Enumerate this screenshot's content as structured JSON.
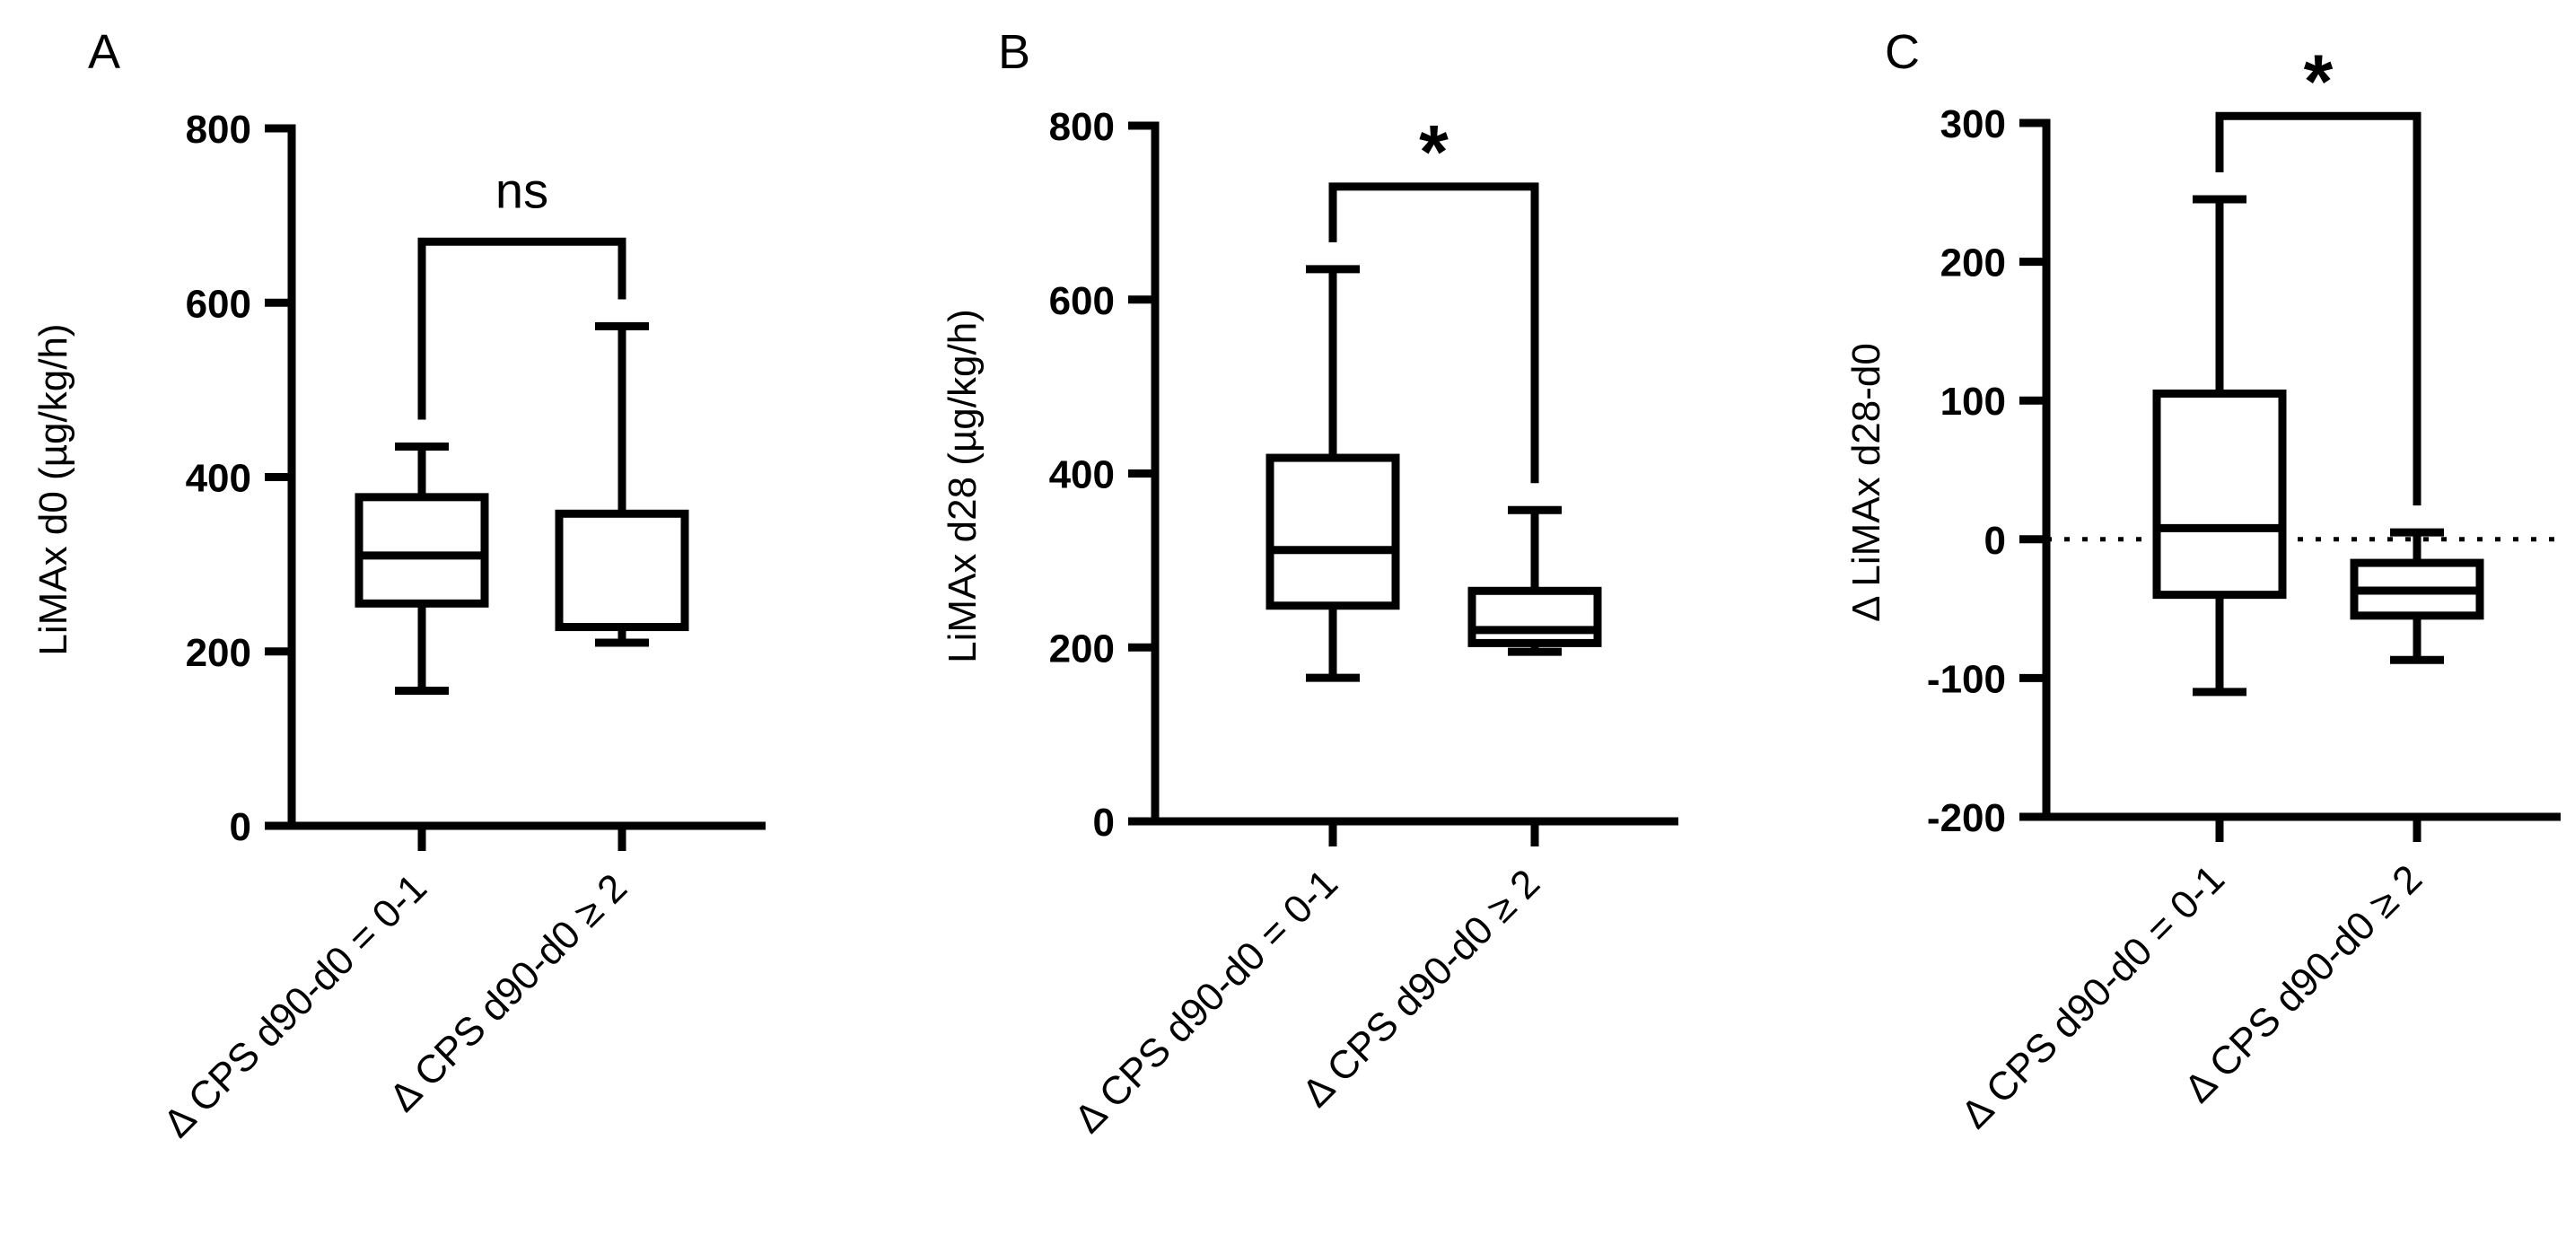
{
  "chart_data": [
    {
      "type": "box",
      "panel_label": "A",
      "ylabel": "LiMAx d0 (µg/kg/h)",
      "ylim": [
        0,
        800
      ],
      "yticks": [
        0,
        200,
        400,
        600,
        800
      ],
      "categories": [
        "Δ CPS d90-d0 = 0-1",
        "Δ CPS d90-d0 ≥ 2"
      ],
      "boxes": [
        {
          "min": 155,
          "q1": 255,
          "median": 310,
          "q3": 377,
          "max": 435
        },
        {
          "min": 210,
          "q1": 228,
          "median": 228,
          "q3": 358,
          "max": 573
        }
      ],
      "significance": {
        "label": "ns",
        "level": 670
      },
      "zero_line": false
    },
    {
      "type": "box",
      "panel_label": "B",
      "ylabel": "LiMAx d28 (µg/kg/h)",
      "ylim": [
        0,
        800
      ],
      "yticks": [
        0,
        200,
        400,
        600,
        800
      ],
      "categories": [
        "Δ CPS d90-d0 = 0-1",
        "Δ CPS d90-d0 ≥ 2"
      ],
      "boxes": [
        {
          "min": 165,
          "q1": 248,
          "median": 312,
          "q3": 418,
          "max": 635
        },
        {
          "min": 195,
          "q1": 205,
          "median": 220,
          "q3": 265,
          "max": 358
        }
      ],
      "significance": {
        "label": "*",
        "level": 730
      },
      "zero_line": false
    },
    {
      "type": "box",
      "panel_label": "C",
      "ylabel": "Δ LiMAx d28-d0",
      "ylim": [
        -200,
        300
      ],
      "yticks": [
        -200,
        -100,
        0,
        100,
        200,
        300
      ],
      "categories": [
        "Δ CPS d90-d0 = 0-1",
        "Δ CPS d90-d0 ≥ 2"
      ],
      "boxes": [
        {
          "min": -110,
          "q1": -40,
          "median": 8,
          "q3": 105,
          "max": 245
        },
        {
          "min": -87,
          "q1": -55,
          "median": -37,
          "q3": -17,
          "max": 5
        }
      ],
      "significance": {
        "label": "*",
        "level": 305
      },
      "zero_line": true
    }
  ]
}
